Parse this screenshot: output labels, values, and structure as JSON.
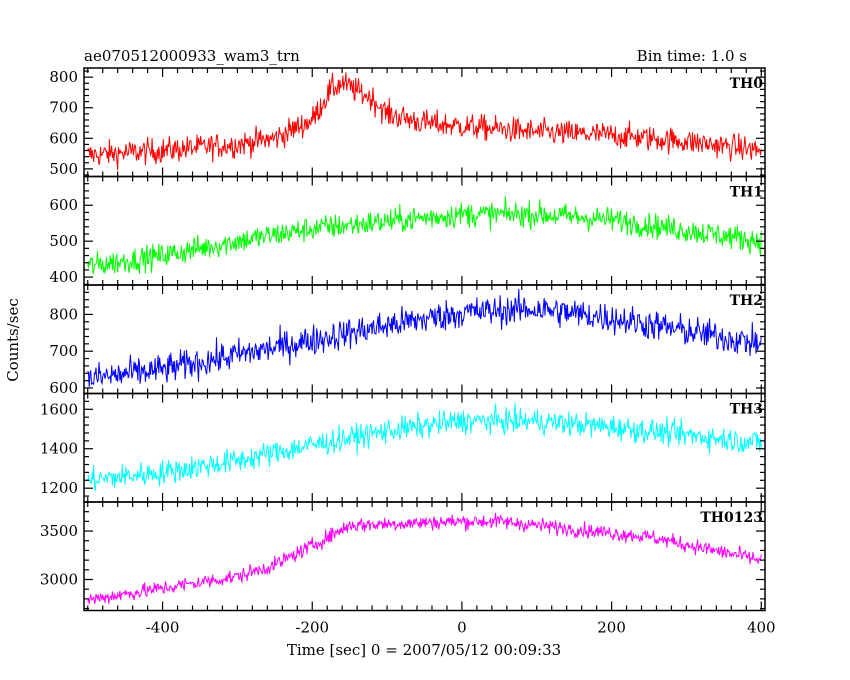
{
  "header": {
    "title": "ae070512000933_wam3_trn",
    "bin_time": "Bin time: 1.0 s"
  },
  "axes": {
    "ylabel": "Counts/sec",
    "xlabel": "Time [sec] 0 = 2007/05/12 00:09:33"
  },
  "chart_data": {
    "type": "line",
    "xlim": [
      -505,
      405
    ],
    "x_ticks": [
      -400,
      -200,
      0,
      200,
      400
    ],
    "x_step": 1.0,
    "panels": [
      {
        "name": "TH0",
        "color": "#ff0000",
        "ylim": [
          475,
          830
        ],
        "y_ticks": [
          500,
          600,
          700,
          800
        ],
        "trend_x": [
          -500,
          -400,
          -300,
          -250,
          -200,
          -175,
          -160,
          -120,
          -100,
          -50,
          0,
          100,
          200,
          300,
          400
        ],
        "trend_y": [
          545,
          560,
          580,
          600,
          660,
          760,
          780,
          730,
          680,
          650,
          640,
          620,
          610,
          590,
          560
        ],
        "noise": 30
      },
      {
        "name": "TH1",
        "color": "#00ff00",
        "ylim": [
          378,
          680
        ],
        "y_ticks": [
          400,
          500,
          600
        ],
        "trend_x": [
          -500,
          -400,
          -300,
          -200,
          -100,
          0,
          100,
          200,
          300,
          400
        ],
        "trend_y": [
          430,
          460,
          500,
          535,
          555,
          575,
          575,
          560,
          530,
          500
        ],
        "noise": 25
      },
      {
        "name": "TH2",
        "color": "#0000ff",
        "ylim": [
          585,
          880
        ],
        "y_ticks": [
          600,
          700,
          800
        ],
        "trend_x": [
          -500,
          -400,
          -300,
          -200,
          -100,
          0,
          100,
          200,
          300,
          400
        ],
        "trend_y": [
          625,
          650,
          690,
          730,
          770,
          805,
          815,
          790,
          755,
          720
        ],
        "noise": 30
      },
      {
        "name": "TH3",
        "color": "#00ffff",
        "ylim": [
          1130,
          1680
        ],
        "y_ticks": [
          1200,
          1400,
          1600
        ],
        "trend_x": [
          -500,
          -400,
          -300,
          -200,
          -100,
          0,
          100,
          200,
          300,
          400
        ],
        "trend_y": [
          1240,
          1280,
          1340,
          1420,
          1490,
          1540,
          1540,
          1510,
          1470,
          1430
        ],
        "noise": 45
      },
      {
        "name": "TH0123",
        "color": "#ff00ff",
        "ylim": [
          2680,
          3800
        ],
        "y_ticks": [
          3000,
          3500
        ],
        "trend_x": [
          -500,
          -400,
          -300,
          -250,
          -200,
          -150,
          0,
          50,
          150,
          250,
          300,
          400
        ],
        "trend_y": [
          2790,
          2910,
          3030,
          3150,
          3350,
          3560,
          3600,
          3600,
          3520,
          3440,
          3360,
          3200
        ],
        "noise": 55
      }
    ]
  }
}
